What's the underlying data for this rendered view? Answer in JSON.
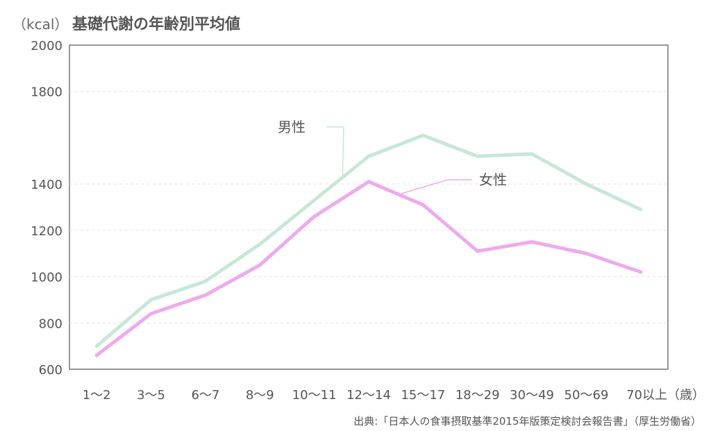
{
  "chart_data": {
    "type": "line",
    "title_unit": "（kcal）",
    "title": "基礎代謝の年齢別平均値",
    "categories": [
      "1〜2",
      "3〜5",
      "6〜7",
      "8〜9",
      "10〜11",
      "12〜14",
      "15〜17",
      "18〜29",
      "30〜49",
      "50〜69",
      "70以上（歳）"
    ],
    "ylim": [
      600,
      2000
    ],
    "yticks": [
      "2000",
      "1800",
      "1400",
      "1200",
      "1000",
      "800",
      "600"
    ],
    "ytick_values": [
      2000,
      1800,
      1400,
      1200,
      1000,
      800,
      600
    ],
    "grid": true,
    "series": [
      {
        "name": "男性",
        "color": "#c6e8d6",
        "values": [
          700,
          900,
          980,
          1140,
          1330,
          1520,
          1610,
          1520,
          1530,
          1400,
          1290
        ]
      },
      {
        "name": "女性",
        "color": "#eeaaee",
        "values": [
          660,
          840,
          920,
          1050,
          1260,
          1410,
          1310,
          1110,
          1150,
          1100,
          1020
        ]
      }
    ],
    "source": "出典:「日本人の食事摂取基準2015年版策定検討会報告書」（厚生労働省）"
  }
}
